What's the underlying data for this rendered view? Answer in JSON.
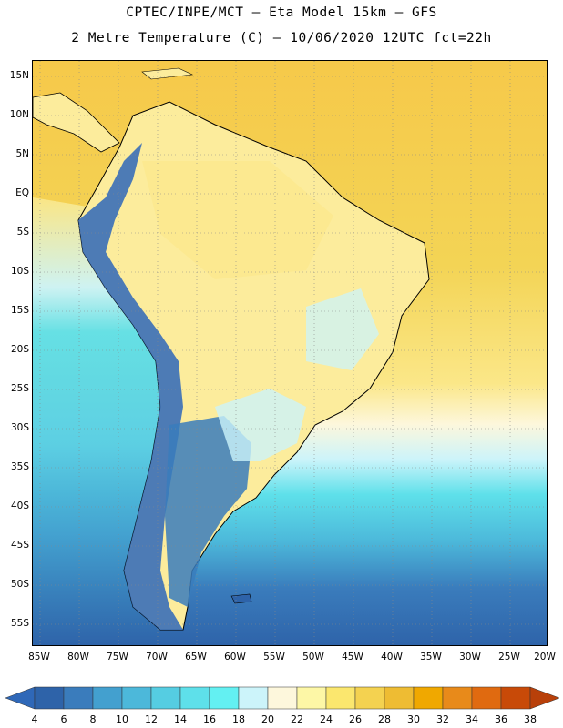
{
  "title": {
    "line1": "CPTEC/INPE/MCT –  Eta Model 15km – GFS",
    "line2": "2 Metre Temperature (C) – 10/06/2020 12UTC fct=22h"
  },
  "map": {
    "lat_labels": [
      "15N",
      "10N",
      "5N",
      "EQ",
      "5S",
      "10S",
      "15S",
      "20S",
      "25S",
      "30S",
      "35S",
      "40S",
      "45S",
      "50S",
      "55S"
    ],
    "lon_labels": [
      "85W",
      "80W",
      "75W",
      "70W",
      "65W",
      "60W",
      "55W",
      "50W",
      "45W",
      "40W",
      "35W",
      "30W",
      "25W",
      "20W"
    ],
    "ocean_color": "#f3d455",
    "land_color": "#fcec9c",
    "grid_style": "dotted"
  },
  "colorbar": {
    "labels": [
      "4",
      "6",
      "8",
      "10",
      "12",
      "14",
      "16",
      "18",
      "20",
      "22",
      "24",
      "26",
      "28",
      "30",
      "32",
      "34",
      "36",
      "38"
    ],
    "colors": [
      "#2e63a9",
      "#3a7cbc",
      "#43a0cf",
      "#4cb8da",
      "#55cde2",
      "#5ee0ea",
      "#63f0f2",
      "#ccf4fa",
      "#fdf7dc",
      "#fdf7a6",
      "#fbe76e",
      "#f4d250",
      "#eebc33",
      "#f0a800",
      "#e88a1a",
      "#e06a10",
      "#c84a08"
    ],
    "min_arrow_color": "#2f68b8",
    "max_arrow_color": "#b8400a"
  }
}
